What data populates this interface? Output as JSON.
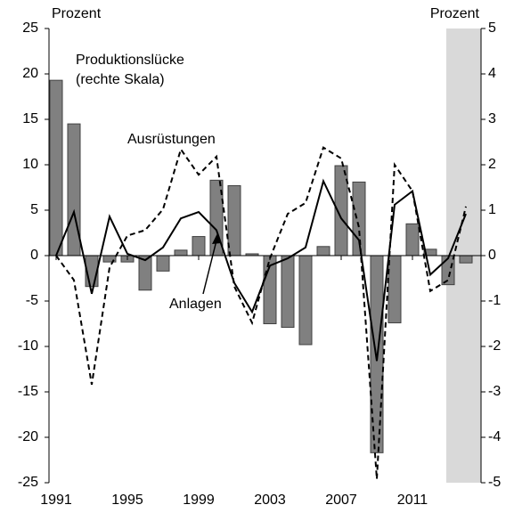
{
  "chart_data": {
    "type": "combo",
    "ylabel": "Prozent",
    "y2label": "Prozent",
    "annotations": [
      "Produktionslücke",
      "(rechte Skala)",
      "Ausrüstungen",
      "Anlagen"
    ],
    "x": [
      1991,
      1992,
      1993,
      1994,
      1995,
      1996,
      1997,
      1998,
      1999,
      2000,
      2001,
      2002,
      2003,
      2004,
      2005,
      2006,
      2007,
      2008,
      2009,
      2010,
      2011,
      2012,
      2013,
      2014
    ],
    "xlim": [
      1990.6,
      2014.85
    ],
    "xticks": [
      1991,
      1995,
      1999,
      2003,
      2007,
      2011
    ],
    "ylim": [
      -25,
      25
    ],
    "yticks": [
      -25,
      -20,
      -15,
      -10,
      -5,
      0,
      5,
      10,
      15,
      20,
      25
    ],
    "y2lim": [
      -5,
      5
    ],
    "y2ticks": [
      -5,
      -4,
      -3,
      -2,
      -1,
      0,
      1,
      2,
      3,
      4,
      5
    ],
    "shaded_xrange": [
      2012.9,
      2014.85
    ],
    "shade_color": "#d9d9d9",
    "series": [
      {
        "type": "bar",
        "axis": "y2",
        "color": "#808080",
        "values": [
          3.86,
          2.9,
          -0.68,
          -0.14,
          -0.14,
          -0.76,
          -0.34,
          0.12,
          0.42,
          1.66,
          1.54,
          0.04,
          -1.5,
          -1.58,
          -1.96,
          0.2,
          1.98,
          1.62,
          -4.34,
          -1.48,
          0.7,
          0.14,
          -0.64,
          -0.16
        ]
      },
      {
        "type": "line",
        "color": "#000000",
        "dashed": false,
        "values": [
          0,
          4.8,
          -4.2,
          4.3,
          0.2,
          -0.5,
          0.9,
          4.1,
          4.8,
          2.8,
          -3.0,
          -6.2,
          -1.1,
          -0.3,
          0.9,
          8.2,
          4.1,
          1.7,
          -11.6,
          5.6,
          7.1,
          -2.1,
          -0.3,
          4.6
        ]
      },
      {
        "type": "line",
        "color": "#000000",
        "dashed": true,
        "values": [
          0,
          -2.7,
          -14.2,
          -1.3,
          2.2,
          2.8,
          5.1,
          11.7,
          8.9,
          10.9,
          -3.4,
          -7.4,
          -0.3,
          4.6,
          5.8,
          11.9,
          10.7,
          3.1,
          -24.6,
          10.0,
          7.1,
          -3.9,
          -2.7,
          5.4
        ]
      }
    ]
  }
}
